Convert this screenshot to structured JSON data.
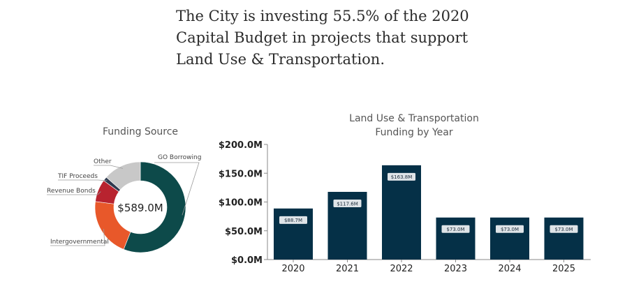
{
  "headline": {
    "line1": "The City is investing 55.5% of the 2020",
    "line2": "Capital Budget in projects that support",
    "line3": "Land Use & Transportation."
  },
  "chart_data": [
    {
      "type": "pie",
      "title": "Funding Source",
      "center_label": "$589.0M",
      "slices": [
        {
          "label": "GO Borrowing",
          "value": 56,
          "color": "#0d4a4a"
        },
        {
          "label": "Intergovernmental",
          "value": 21,
          "color": "#e8582a"
        },
        {
          "label": "Revenue Bonds",
          "value": 8,
          "color": "#b8232f"
        },
        {
          "label": "TIF Proceeds",
          "value": 1.5,
          "color": "#2e3a4f"
        },
        {
          "label": "Other",
          "value": 13.5,
          "color": "#c8c8c8"
        }
      ]
    },
    {
      "type": "bar",
      "title": "Land Use & Transportation Funding by Year",
      "title_lines": [
        "Land Use & Transportation",
        "Funding by Year"
      ],
      "categories": [
        "2020",
        "2021",
        "2022",
        "2023",
        "2024",
        "2025"
      ],
      "values": [
        88.7,
        117.6,
        163.8,
        73.0,
        73.0,
        73.0
      ],
      "data_labels": [
        "$88.7M",
        "$117.6M",
        "$163.8M",
        "$73.0M",
        "$73.0M",
        "$73.0M"
      ],
      "yticks": [
        "$0.0M",
        "$50.0M",
        "$100.0M",
        "$150.0M",
        "$200.0M"
      ],
      "ylim": [
        0,
        200
      ],
      "bar_color": "#053047",
      "label_box_color": "#dfe4e8",
      "grid": false
    }
  ]
}
